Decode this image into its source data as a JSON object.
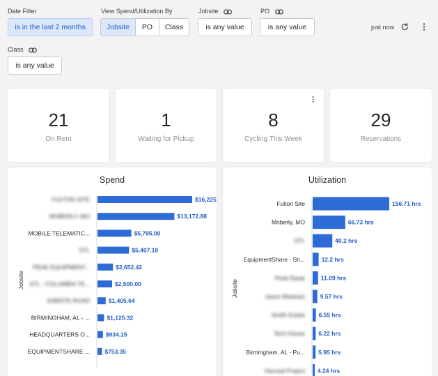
{
  "filters": {
    "date": {
      "label": "Date Filter",
      "value": "is in the last 2 months"
    },
    "view": {
      "label": "View Spend/Utilization By",
      "options": [
        "Jobsite",
        "PO",
        "Class"
      ],
      "selected": "Jobsite"
    },
    "jobsite": {
      "label": "Jobsite",
      "value": "is any value"
    },
    "po": {
      "label": "PO",
      "value": "is any value"
    },
    "class": {
      "label": "Class",
      "value": "is any value"
    }
  },
  "toolbar": {
    "status": "just now"
  },
  "kpis": [
    {
      "value": "21",
      "label": "On Rent"
    },
    {
      "value": "1",
      "label": "Waiting for Pickup"
    },
    {
      "value": "8",
      "label": "Cycling This Week"
    },
    {
      "value": "29",
      "label": "Reservations"
    }
  ],
  "colors": {
    "bar": "#2d6cd6",
    "bar_label": "#1f5cc8",
    "chip_active_bg": "#dce7fb"
  },
  "chart_data": [
    {
      "type": "bar",
      "orientation": "horizontal",
      "title": "Spend",
      "ylabel": "Jobsite",
      "categories": [
        "FULTON SITE",
        "MOBERLY, MO",
        "MOBILE TELEMATIC...",
        "STL",
        "PEAK EQUIPMENT...",
        "STL - COLUMBIA TE...",
        "JOBSITE ROAD",
        "BIRMINGHAM, AL - ...",
        "HEADQUARTERS O...",
        "EQUIPMENTSHARE ..."
      ],
      "blurred": [
        true,
        true,
        false,
        true,
        true,
        true,
        true,
        false,
        false,
        false
      ],
      "values": [
        16225,
        13172.88,
        5795.0,
        5407.19,
        2652.42,
        2500.0,
        1405.64,
        1125.32,
        934.15,
        753.35
      ],
      "value_labels": [
        "$16,225",
        "$13,172.88",
        "$5,795.00",
        "$5,407.19",
        "$2,652.42",
        "$2,500.00",
        "$1,405.64",
        "$1,125.32",
        "$934.15",
        "$753.35"
      ],
      "xlim": [
        0,
        16225
      ]
    },
    {
      "type": "bar",
      "orientation": "horizontal",
      "title": "Utilization",
      "ylabel": "Jobsite",
      "categories": [
        "Fulton Site",
        "Moberly, MO",
        "STL",
        "EquipmentShare - Sh...",
        "Peak Equip",
        "Jason Martinez",
        "Smith Estate",
        "Tech House",
        "Birmingham, AL - Pu...",
        "Harvest Project"
      ],
      "blurred": [
        false,
        false,
        true,
        false,
        true,
        true,
        true,
        true,
        false,
        true
      ],
      "values": [
        156.71,
        66.73,
        40.2,
        12.2,
        11.09,
        9.57,
        6.55,
        6.22,
        5.95,
        4.24
      ],
      "value_labels": [
        "156.71 hrs",
        "66.73 hrs",
        "40.2 hrs",
        "12.2 hrs",
        "11.09 hrs",
        "9.57 hrs",
        "6.55 hrs",
        "6.22 hrs",
        "5.95 hrs",
        "4.24 hrs"
      ],
      "xlim": [
        0,
        156.71
      ]
    }
  ]
}
